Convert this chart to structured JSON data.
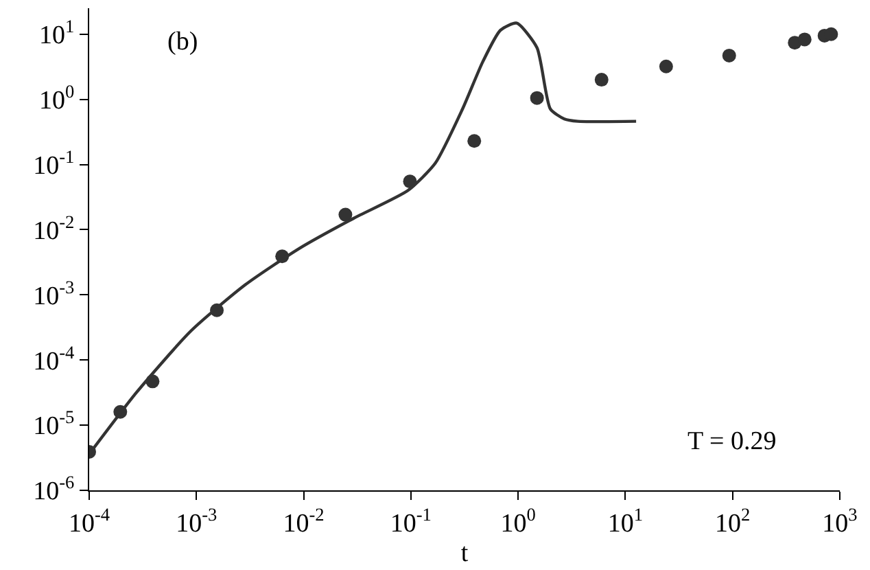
{
  "chart_data": {
    "type": "scatter",
    "xlabel": "t",
    "log": "xy",
    "legend": false,
    "xlim": [
      0.0001,
      1000.0
    ],
    "ylim": [
      1e-06,
      25
    ],
    "xticks": [
      {
        "value": 0.0001,
        "label": "10$^{-4}$"
      },
      {
        "value": 0.001,
        "label": "10$^{-3}$"
      },
      {
        "value": 0.01,
        "label": "10$^{-2}$"
      },
      {
        "value": 0.1,
        "label": "10$^{-1}$"
      },
      {
        "value": 1,
        "label": "10$^{0}$"
      },
      {
        "value": 10,
        "label": "10$^{1}$"
      },
      {
        "value": 100,
        "label": "10$^{2}$"
      },
      {
        "value": 1000,
        "label": "10$^{3}$"
      }
    ],
    "yticks": [
      {
        "value": 1e-06,
        "label": "10$^{-6}$"
      },
      {
        "value": 1e-05,
        "label": "10$^{-5}$"
      },
      {
        "value": 0.0001,
        "label": "10$^{-4}$"
      },
      {
        "value": 0.001,
        "label": "10$^{-3}$"
      },
      {
        "value": 0.01,
        "label": "10$^{-2}$"
      },
      {
        "value": 0.1,
        "label": "10$^{-1}$"
      },
      {
        "value": 1,
        "label": "10$^{0}$"
      },
      {
        "value": 10,
        "label": "10$^{1}$"
      }
    ],
    "annotations": [
      "(b)",
      "T = 0.29"
    ],
    "series": [
      {
        "color": "#333333",
        "marker": "circle",
        "x": [
          0.0001,
          0.000195,
          0.00039,
          0.00155,
          0.0063,
          0.0245,
          0.098,
          0.39,
          1.5,
          6.0,
          24,
          93,
          380,
          470,
          720,
          830
        ],
        "values": [
          3.9e-06,
          1.6e-05,
          4.7e-05,
          0.00058,
          0.0039,
          0.017,
          0.055,
          0.23,
          1.05,
          2.0,
          3.2,
          4.7,
          7.4,
          8.3,
          9.5,
          10
        ]
      },
      {
        "type": "line",
        "color": "#333333",
        "line_style": "solid",
        "x": [
          0.0001,
          0.000277,
          0.00089,
          0.00286,
          0.0092,
          0.0294,
          0.094,
          0.169,
          0.303,
          0.469,
          0.684,
          0.97,
          1.5,
          2.0,
          2.7,
          3.6,
          12.6
        ],
        "values": [
          3.6e-06,
          3.2e-05,
          0.00028,
          0.00143,
          0.0052,
          0.015,
          0.04,
          0.105,
          0.71,
          3.8,
          11.5,
          14.8,
          6.2,
          0.71,
          0.5,
          0.46,
          0.46
        ]
      }
    ]
  }
}
